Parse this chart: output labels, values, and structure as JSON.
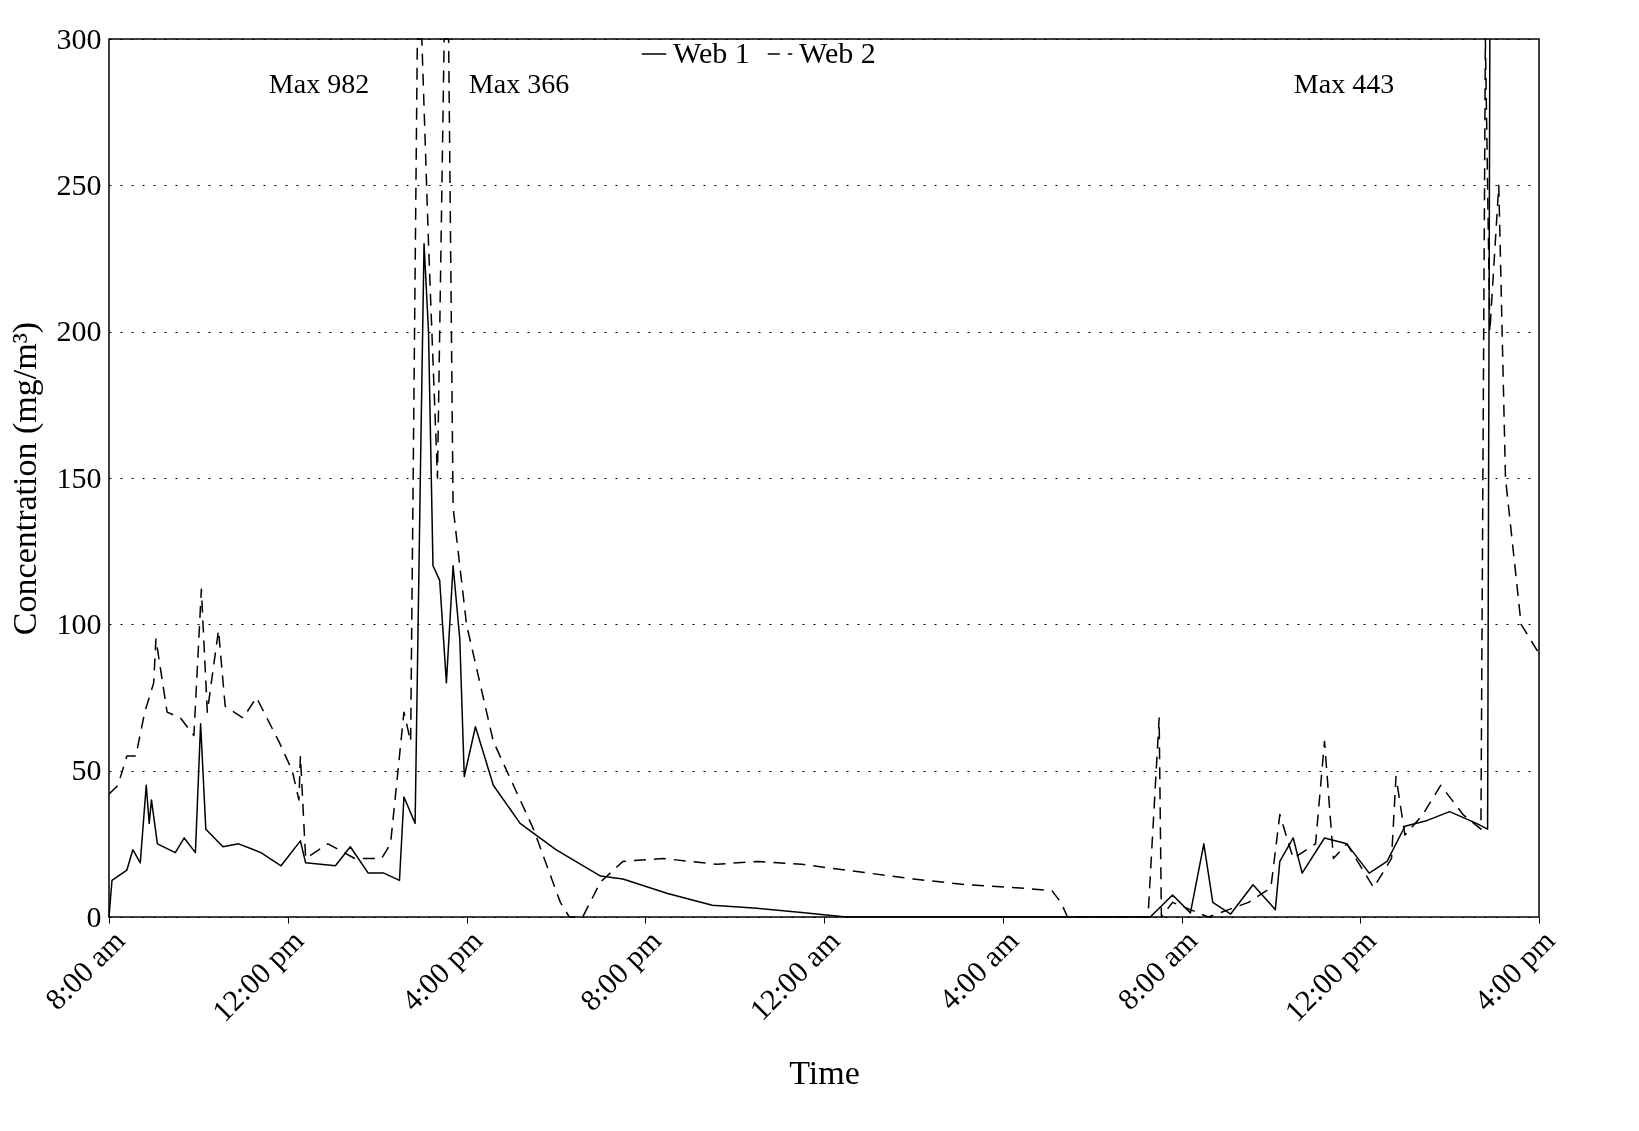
{
  "chart_data": {
    "type": "line",
    "xlabel": "Time",
    "ylabel": "Concentration (mg/m³)",
    "xlim": [
      "2000-01-01T08:00",
      "2000-01-02T16:00"
    ],
    "ylim": [
      0,
      300
    ],
    "xticks": [
      {
        "value": "2000-01-01T08:00",
        "label": "8:00 am"
      },
      {
        "value": "2000-01-01T12:00",
        "label": "12:00 pm"
      },
      {
        "value": "2000-01-01T16:00",
        "label": "4:00 pm"
      },
      {
        "value": "2000-01-01T20:00",
        "label": "8:00 pm"
      },
      {
        "value": "2000-01-02T00:00",
        "label": "12:00 am"
      },
      {
        "value": "2000-01-02T04:00",
        "label": "4:00 am"
      },
      {
        "value": "2000-01-02T08:00",
        "label": "8:00 am"
      },
      {
        "value": "2000-01-02T12:00",
        "label": "12:00 pm"
      },
      {
        "value": "2000-01-02T16:00",
        "label": "4:00 pm"
      }
    ],
    "yticks": [
      0,
      50,
      100,
      150,
      200,
      250,
      300
    ],
    "grid": "y",
    "legend": "top",
    "marker": "none",
    "annotations": [
      "Max 982",
      "Max 366",
      "Max 443"
    ],
    "series": [
      {
        "name": "Web 1",
        "color": "#000000",
        "line_style": "solid",
        "x": [
          "2000-01-01T08:00",
          "2000-01-01T08:04",
          "2000-01-01T08:24",
          "2000-01-01T08:32",
          "2000-01-01T08:42",
          "2000-01-01T08:50",
          "2000-01-01T08:54",
          "2000-01-01T08:57",
          "2000-01-01T09:05",
          "2000-01-01T09:29",
          "2000-01-01T09:41",
          "2000-01-01T09:56",
          "2000-01-01T10:03",
          "2000-01-01T10:10",
          "2000-01-01T10:33",
          "2000-01-01T10:54",
          "2000-01-01T11:24",
          "2000-01-01T11:51",
          "2000-01-01T12:17",
          "2000-01-01T12:24",
          "2000-01-01T13:04",
          "2000-01-01T13:24",
          "2000-01-01T13:48",
          "2000-01-01T14:09",
          "2000-01-01T14:30",
          "2000-01-01T14:36",
          "2000-01-01T14:51",
          "2000-01-01T14:58",
          "2000-01-01T15:03",
          "2000-01-01T15:09",
          "2000-01-01T15:15",
          "2000-01-01T15:24",
          "2000-01-01T15:33",
          "2000-01-01T15:42",
          "2000-01-01T15:51",
          "2000-01-01T15:57",
          "2000-01-01T16:12",
          "2000-01-01T16:36",
          "2000-01-01T17:12",
          "2000-01-01T18:00",
          "2000-01-01T19:00",
          "2000-01-01T19:30",
          "2000-01-01T20:30",
          "2000-01-01T21:30",
          "2000-01-01T22:30",
          "2000-01-01T23:30",
          "2000-01-02T00:30",
          "2000-01-02T04:00",
          "2000-01-02T07:18",
          "2000-01-02T07:48",
          "2000-01-02T08:12",
          "2000-01-02T08:30",
          "2000-01-02T08:42",
          "2000-01-02T09:06",
          "2000-01-02T09:36",
          "2000-01-02T10:06",
          "2000-01-02T10:12",
          "2000-01-02T10:30",
          "2000-01-02T10:42",
          "2000-01-02T11:12",
          "2000-01-02T11:42",
          "2000-01-02T12:12",
          "2000-01-02T12:36",
          "2000-01-02T13:00",
          "2000-01-02T13:30",
          "2000-01-02T14:00",
          "2000-01-02T14:36",
          "2000-01-02T14:51",
          "2000-01-02T14:54"
        ],
        "values": [
          0,
          12.5,
          16,
          23,
          18.5,
          45,
          32,
          40,
          25,
          22,
          27,
          22,
          66,
          30,
          24,
          25,
          22,
          17.5,
          26,
          18.5,
          17.5,
          24,
          15,
          15,
          12.5,
          41,
          32,
          150,
          230,
          200,
          120,
          115,
          80,
          120,
          95,
          48,
          65,
          45,
          32,
          23,
          14,
          13,
          8,
          4,
          3,
          1.5,
          0,
          0,
          0,
          7.5,
          1.4,
          25,
          5,
          1,
          11,
          2.5,
          19,
          27,
          15,
          27,
          25,
          15,
          19,
          31,
          33,
          36,
          32,
          30,
          300
        ]
      },
      {
        "name": "Web 2",
        "color": "#000000",
        "line_style": "dashed",
        "x": [
          "2000-01-01T08:00",
          "2000-01-01T08:12",
          "2000-01-01T08:24",
          "2000-01-01T08:36",
          "2000-01-01T08:48",
          "2000-01-01T09:00",
          "2000-01-01T09:03",
          "2000-01-01T09:18",
          "2000-01-01T09:36",
          "2000-01-01T09:54",
          "2000-01-01T10:04",
          "2000-01-01T10:12",
          "2000-01-01T10:27",
          "2000-01-01T10:36",
          "2000-01-01T11:00",
          "2000-01-01T11:18",
          "2000-01-01T11:24",
          "2000-01-01T11:48",
          "2000-01-01T12:06",
          "2000-01-01T12:15",
          "2000-01-01T12:17",
          "2000-01-01T12:24",
          "2000-01-01T12:54",
          "2000-01-01T13:30",
          "2000-01-01T14:06",
          "2000-01-01T14:18",
          "2000-01-01T14:36",
          "2000-01-01T14:45",
          "2000-01-01T14:54",
          "2000-01-01T15:00",
          "2000-01-01T15:09",
          "2000-01-01T15:21",
          "2000-01-01T15:30",
          "2000-01-01T15:36",
          "2000-01-01T15:42",
          "2000-01-01T16:00",
          "2000-01-01T16:36",
          "2000-01-01T17:30",
          "2000-01-01T18:06",
          "2000-01-01T18:18",
          "2000-01-01T18:36",
          "2000-01-01T19:00",
          "2000-01-01T19:30",
          "2000-01-01T20:24",
          "2000-01-01T21:36",
          "2000-01-01T22:30",
          "2000-01-01T23:30",
          "2000-01-02T00:30",
          "2000-01-02T02:00",
          "2000-01-02T03:12",
          "2000-01-02T04:18",
          "2000-01-02T05:06",
          "2000-01-02T05:18",
          "2000-01-02T05:27",
          "2000-01-02T07:15",
          "2000-01-02T07:30",
          "2000-01-02T07:33",
          "2000-01-02T07:48",
          "2000-01-02T08:36",
          "2000-01-02T09:30",
          "2000-01-02T10:00",
          "2000-01-02T10:12",
          "2000-01-02T10:30",
          "2000-01-02T11:00",
          "2000-01-02T11:12",
          "2000-01-02T11:24",
          "2000-01-02T11:42",
          "2000-01-02T12:18",
          "2000-01-02T12:42",
          "2000-01-02T12:48",
          "2000-01-02T13:00",
          "2000-01-02T13:24",
          "2000-01-02T13:48",
          "2000-01-02T14:18",
          "2000-01-02T14:42",
          "2000-01-02T14:48",
          "2000-01-02T14:54",
          "2000-01-02T15:06",
          "2000-01-02T15:15",
          "2000-01-02T15:36",
          "2000-01-02T16:00"
        ],
        "values": [
          42,
          45,
          55,
          55,
          70,
          80,
          95,
          70,
          68,
          62,
          112,
          70,
          98,
          72,
          68,
          75,
          72,
          60,
          50,
          40,
          55,
          20,
          25,
          20,
          20,
          25,
          70,
          60,
          300,
          300,
          230,
          150,
          300,
          300,
          140,
          100,
          60,
          30,
          5,
          0,
          0,
          12,
          19,
          20,
          18,
          19,
          18,
          16,
          13,
          11,
          10,
          9,
          5,
          0,
          0,
          68,
          0,
          5,
          0,
          5,
          10,
          35,
          20,
          25,
          60,
          20,
          25,
          10,
          20,
          48,
          28,
          35,
          45,
          35,
          30,
          300,
          200,
          250,
          150,
          100,
          90
        ]
      }
    ]
  }
}
